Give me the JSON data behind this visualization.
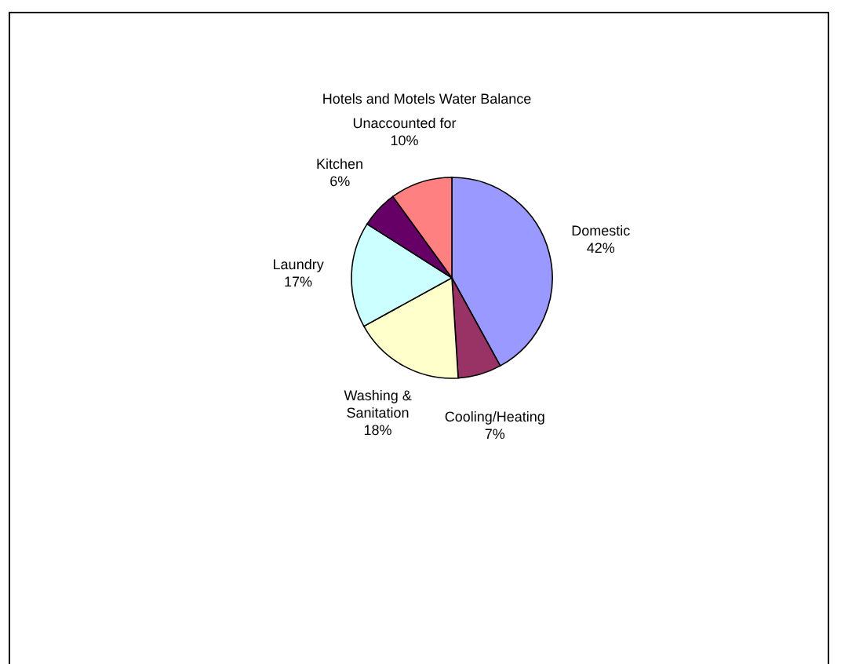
{
  "chart_data": {
    "type": "pie",
    "title": "Hotels and Motels Water Balance",
    "categories": [
      "Domestic",
      "Cooling/Heating",
      "Washing & Sanitation",
      "Laundry",
      "Kitchen",
      "Unaccounted for"
    ],
    "values": [
      42,
      7,
      18,
      17,
      6,
      10
    ],
    "colors": [
      "#9999ff",
      "#993366",
      "#ffffcc",
      "#ccffff",
      "#660066",
      "#ff8080"
    ],
    "value_labels": [
      "42%",
      "7%",
      "18%",
      "17%",
      "6%",
      "10%"
    ]
  }
}
